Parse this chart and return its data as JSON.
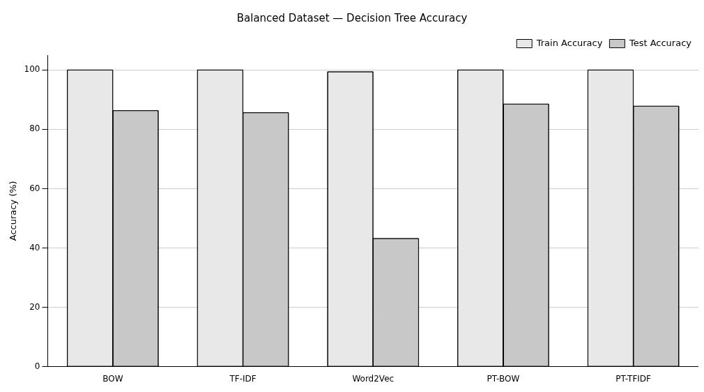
{
  "chart_data": {
    "type": "bar",
    "title": "Balanced Dataset — Decision Tree Accuracy",
    "ylabel": "Accuracy (%)",
    "categories": [
      "BOW",
      "TF-IDF",
      "Word2Vec",
      "PT-BOW",
      "PT-TFIDF"
    ],
    "series": [
      {
        "name": "Train Accuracy",
        "color": "#e8e8e8",
        "values": [
          100,
          100,
          99.4,
          100,
          100
        ]
      },
      {
        "name": "Test Accuracy",
        "color": "#c8c8c8",
        "values": [
          86.3,
          85.6,
          43.2,
          88.5,
          87.8
        ]
      }
    ],
    "ylim": [
      0,
      105
    ],
    "yticks": [
      0,
      20,
      40,
      60,
      80,
      100
    ],
    "grid": "y",
    "legend": "top right"
  }
}
